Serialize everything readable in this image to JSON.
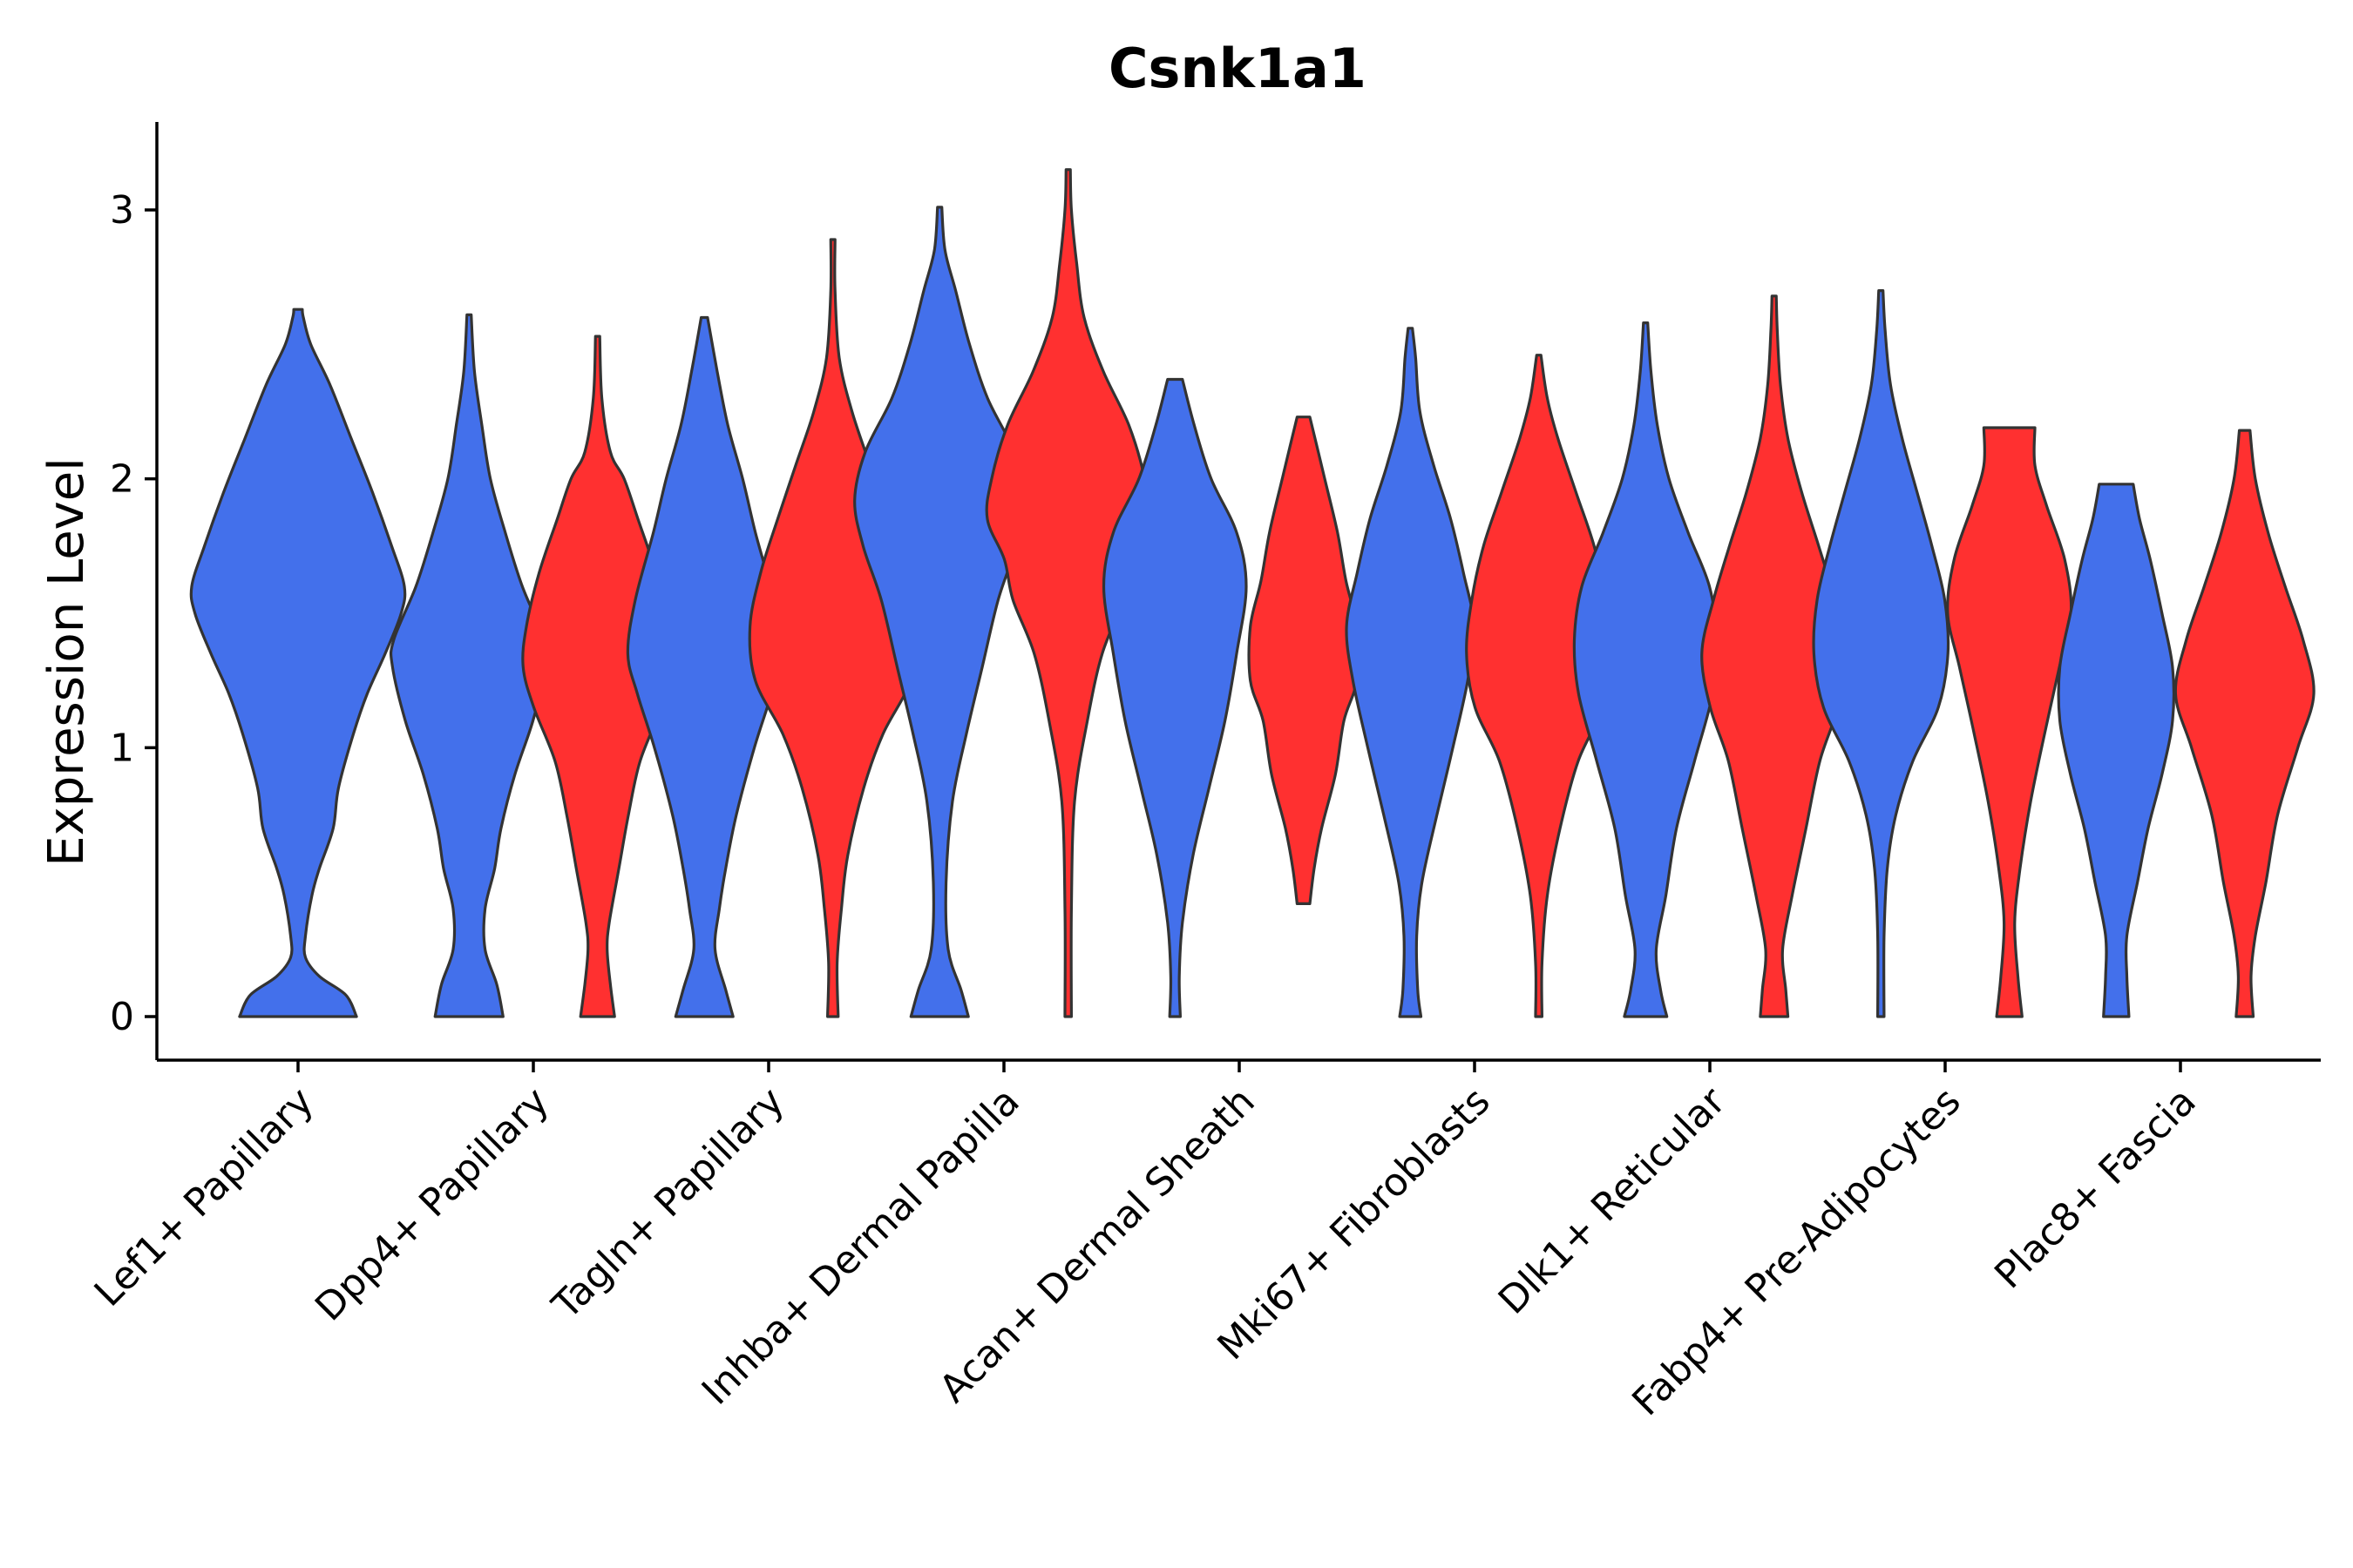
{
  "chart_data": {
    "type": "violin",
    "title": "Csnk1a1",
    "xlabel": "",
    "ylabel": "Expression Level",
    "ylim": [
      -0.16,
      3.32
    ],
    "yticks": [
      0,
      1,
      2,
      3
    ],
    "grid": false,
    "legend": "none",
    "colors": {
      "group1": "#4370EB",
      "group2": "#FF3030",
      "outline": "#333333"
    },
    "categories": [
      "Lef1+ Papillary",
      "Dpp4+ Papillary",
      "Tagln+ Papillary",
      "Inhba+ Dermal Papilla",
      "Acan+ Dermal Sheath",
      "Mki67+ Fibroblasts",
      "Dlk1+ Reticular",
      "Fabp4+ Pre-Adipocytes",
      "Plac8+ Fascia"
    ],
    "violins": [
      {
        "category": 0,
        "group": "group1",
        "offset": 0,
        "profile": [
          [
            0,
            0.55
          ],
          [
            0.08,
            0.45
          ],
          [
            0.15,
            0.2
          ],
          [
            0.22,
            0.07
          ],
          [
            0.3,
            0.07
          ],
          [
            0.45,
            0.13
          ],
          [
            0.55,
            0.2
          ],
          [
            0.7,
            0.33
          ],
          [
            0.85,
            0.38
          ],
          [
            1.05,
            0.52
          ],
          [
            1.2,
            0.65
          ],
          [
            1.35,
            0.82
          ],
          [
            1.5,
            0.97
          ],
          [
            1.6,
            1.0
          ],
          [
            1.75,
            0.88
          ],
          [
            1.95,
            0.7
          ],
          [
            2.15,
            0.5
          ],
          [
            2.35,
            0.3
          ],
          [
            2.5,
            0.12
          ],
          [
            2.6,
            0.05
          ],
          [
            2.63,
            0.04
          ]
        ]
      },
      {
        "category": 1,
        "group": "group1",
        "offset": -0.35,
        "profile": [
          [
            0,
            0.32
          ],
          [
            0.12,
            0.26
          ],
          [
            0.25,
            0.15
          ],
          [
            0.4,
            0.15
          ],
          [
            0.55,
            0.24
          ],
          [
            0.7,
            0.3
          ],
          [
            0.9,
            0.43
          ],
          [
            1.1,
            0.6
          ],
          [
            1.3,
            0.72
          ],
          [
            1.4,
            0.71
          ],
          [
            1.6,
            0.5
          ],
          [
            1.8,
            0.34
          ],
          [
            2.0,
            0.2
          ],
          [
            2.2,
            0.12
          ],
          [
            2.4,
            0.05
          ],
          [
            2.61,
            0.02
          ]
        ]
      },
      {
        "category": 1,
        "group": "group2",
        "offset": 0.35,
        "profile": [
          [
            0,
            0.16
          ],
          [
            0.12,
            0.12
          ],
          [
            0.25,
            0.09
          ],
          [
            0.35,
            0.11
          ],
          [
            0.55,
            0.2
          ],
          [
            0.75,
            0.29
          ],
          [
            0.95,
            0.4
          ],
          [
            1.15,
            0.6
          ],
          [
            1.3,
            0.7
          ],
          [
            1.45,
            0.67
          ],
          [
            1.65,
            0.55
          ],
          [
            1.85,
            0.38
          ],
          [
            2.0,
            0.25
          ],
          [
            2.1,
            0.12
          ],
          [
            2.3,
            0.04
          ],
          [
            2.53,
            0.02
          ]
        ]
      },
      {
        "category": 2,
        "group": "group1",
        "offset": -0.35,
        "profile": [
          [
            0,
            0.27
          ],
          [
            0.1,
            0.2
          ],
          [
            0.25,
            0.1
          ],
          [
            0.4,
            0.14
          ],
          [
            0.55,
            0.2
          ],
          [
            0.75,
            0.3
          ],
          [
            1.0,
            0.47
          ],
          [
            1.2,
            0.63
          ],
          [
            1.35,
            0.72
          ],
          [
            1.55,
            0.65
          ],
          [
            1.8,
            0.48
          ],
          [
            2.0,
            0.36
          ],
          [
            2.2,
            0.22
          ],
          [
            2.4,
            0.12
          ],
          [
            2.6,
            0.03
          ]
        ]
      },
      {
        "category": 2,
        "group": "group2",
        "offset": 0.35,
        "profile": [
          [
            0,
            0.05
          ],
          [
            0.2,
            0.04
          ],
          [
            0.4,
            0.08
          ],
          [
            0.6,
            0.14
          ],
          [
            0.85,
            0.29
          ],
          [
            1.05,
            0.47
          ],
          [
            1.25,
            0.73
          ],
          [
            1.45,
            0.78
          ],
          [
            1.65,
            0.68
          ],
          [
            1.85,
            0.52
          ],
          [
            2.05,
            0.35
          ],
          [
            2.25,
            0.18
          ],
          [
            2.45,
            0.06
          ],
          [
            2.7,
            0.02
          ],
          [
            2.89,
            0.02
          ]
        ]
      },
      {
        "category": 3,
        "group": "group1",
        "offset": -0.35,
        "profile": [
          [
            0,
            0.27
          ],
          [
            0.1,
            0.2
          ],
          [
            0.25,
            0.08
          ],
          [
            0.5,
            0.06
          ],
          [
            0.8,
            0.12
          ],
          [
            1.05,
            0.25
          ],
          [
            1.3,
            0.4
          ],
          [
            1.55,
            0.55
          ],
          [
            1.75,
            0.72
          ],
          [
            1.92,
            0.8
          ],
          [
            2.1,
            0.7
          ],
          [
            2.3,
            0.45
          ],
          [
            2.5,
            0.28
          ],
          [
            2.7,
            0.15
          ],
          [
            2.85,
            0.05
          ],
          [
            3.01,
            0.02
          ]
        ]
      },
      {
        "category": 3,
        "group": "group2",
        "offset": 0.35,
        "profile": [
          [
            0,
            0.03
          ],
          [
            0.4,
            0.03
          ],
          [
            0.8,
            0.06
          ],
          [
            1.1,
            0.18
          ],
          [
            1.35,
            0.32
          ],
          [
            1.55,
            0.52
          ],
          [
            1.7,
            0.6
          ],
          [
            1.85,
            0.76
          ],
          [
            2.0,
            0.72
          ],
          [
            2.2,
            0.57
          ],
          [
            2.4,
            0.33
          ],
          [
            2.6,
            0.15
          ],
          [
            2.8,
            0.08
          ],
          [
            3.0,
            0.03
          ],
          [
            3.15,
            0.02
          ]
        ]
      },
      {
        "category": 4,
        "group": "group1",
        "offset": -0.35,
        "profile": [
          [
            0,
            0.05
          ],
          [
            0.15,
            0.04
          ],
          [
            0.35,
            0.07
          ],
          [
            0.6,
            0.17
          ],
          [
            0.85,
            0.32
          ],
          [
            1.1,
            0.47
          ],
          [
            1.35,
            0.58
          ],
          [
            1.6,
            0.67
          ],
          [
            1.8,
            0.58
          ],
          [
            2.0,
            0.34
          ],
          [
            2.2,
            0.18
          ],
          [
            2.37,
            0.07
          ]
        ]
      },
      {
        "category": 4,
        "group": "group2",
        "offset": 0.35,
        "profile": [
          [
            0.42,
            0.06
          ],
          [
            0.55,
            0.1
          ],
          [
            0.7,
            0.17
          ],
          [
            0.9,
            0.3
          ],
          [
            1.1,
            0.38
          ],
          [
            1.25,
            0.5
          ],
          [
            1.45,
            0.5
          ],
          [
            1.62,
            0.4
          ],
          [
            1.8,
            0.32
          ],
          [
            2.0,
            0.2
          ],
          [
            2.23,
            0.06
          ]
        ]
      },
      {
        "category": 5,
        "group": "group1",
        "offset": -0.35,
        "profile": [
          [
            0,
            0.1
          ],
          [
            0.1,
            0.07
          ],
          [
            0.3,
            0.06
          ],
          [
            0.5,
            0.11
          ],
          [
            0.75,
            0.25
          ],
          [
            1.0,
            0.4
          ],
          [
            1.25,
            0.54
          ],
          [
            1.45,
            0.6
          ],
          [
            1.65,
            0.5
          ],
          [
            1.85,
            0.38
          ],
          [
            2.05,
            0.22
          ],
          [
            2.25,
            0.09
          ],
          [
            2.45,
            0.05
          ],
          [
            2.56,
            0.02
          ]
        ]
      },
      {
        "category": 5,
        "group": "group2",
        "offset": 0.35,
        "profile": [
          [
            0,
            0.03
          ],
          [
            0.2,
            0.03
          ],
          [
            0.45,
            0.08
          ],
          [
            0.7,
            0.2
          ],
          [
            0.95,
            0.37
          ],
          [
            1.15,
            0.6
          ],
          [
            1.35,
            0.68
          ],
          [
            1.55,
            0.63
          ],
          [
            1.75,
            0.52
          ],
          [
            1.95,
            0.35
          ],
          [
            2.15,
            0.18
          ],
          [
            2.3,
            0.08
          ],
          [
            2.46,
            0.02
          ]
        ]
      },
      {
        "category": 6,
        "group": "group1",
        "offset": -0.35,
        "profile": [
          [
            0,
            0.2
          ],
          [
            0.1,
            0.14
          ],
          [
            0.25,
            0.1
          ],
          [
            0.45,
            0.19
          ],
          [
            0.7,
            0.29
          ],
          [
            0.95,
            0.46
          ],
          [
            1.2,
            0.63
          ],
          [
            1.4,
            0.67
          ],
          [
            1.6,
            0.6
          ],
          [
            1.8,
            0.4
          ],
          [
            2.0,
            0.22
          ],
          [
            2.2,
            0.11
          ],
          [
            2.4,
            0.05
          ],
          [
            2.58,
            0.02
          ]
        ]
      },
      {
        "category": 6,
        "group": "group2",
        "offset": 0.35,
        "profile": [
          [
            0,
            0.13
          ],
          [
            0.1,
            0.11
          ],
          [
            0.25,
            0.08
          ],
          [
            0.45,
            0.17
          ],
          [
            0.7,
            0.3
          ],
          [
            0.95,
            0.43
          ],
          [
            1.15,
            0.6
          ],
          [
            1.35,
            0.68
          ],
          [
            1.55,
            0.57
          ],
          [
            1.75,
            0.42
          ],
          [
            1.95,
            0.26
          ],
          [
            2.15,
            0.13
          ],
          [
            2.35,
            0.06
          ],
          [
            2.55,
            0.03
          ],
          [
            2.68,
            0.02
          ]
        ]
      },
      {
        "category": 7,
        "group": "group1",
        "offset": -0.35,
        "profile": [
          [
            0,
            0.03
          ],
          [
            0.3,
            0.03
          ],
          [
            0.55,
            0.06
          ],
          [
            0.75,
            0.14
          ],
          [
            0.95,
            0.3
          ],
          [
            1.15,
            0.54
          ],
          [
            1.35,
            0.63
          ],
          [
            1.55,
            0.6
          ],
          [
            1.75,
            0.48
          ],
          [
            1.95,
            0.34
          ],
          [
            2.15,
            0.2
          ],
          [
            2.35,
            0.09
          ],
          [
            2.55,
            0.04
          ],
          [
            2.7,
            0.02
          ]
        ]
      },
      {
        "category": 7,
        "group": "group2",
        "offset": 0.35,
        "profile": [
          [
            0,
            0.12
          ],
          [
            0.15,
            0.08
          ],
          [
            0.35,
            0.05
          ],
          [
            0.55,
            0.1
          ],
          [
            0.8,
            0.2
          ],
          [
            1.05,
            0.33
          ],
          [
            1.3,
            0.47
          ],
          [
            1.5,
            0.58
          ],
          [
            1.7,
            0.52
          ],
          [
            1.9,
            0.35
          ],
          [
            2.05,
            0.24
          ],
          [
            2.19,
            0.24
          ]
        ]
      },
      {
        "category": 8,
        "group": "group1",
        "offset": -0.35,
        "profile": [
          [
            0,
            0.12
          ],
          [
            0.15,
            0.1
          ],
          [
            0.3,
            0.1
          ],
          [
            0.5,
            0.2
          ],
          [
            0.7,
            0.3
          ],
          [
            0.9,
            0.43
          ],
          [
            1.1,
            0.53
          ],
          [
            1.3,
            0.53
          ],
          [
            1.5,
            0.43
          ],
          [
            1.7,
            0.32
          ],
          [
            1.85,
            0.22
          ],
          [
            1.98,
            0.16
          ]
        ]
      },
      {
        "category": 8,
        "group": "group2",
        "offset": 0.35,
        "profile": [
          [
            0,
            0.08
          ],
          [
            0.15,
            0.06
          ],
          [
            0.3,
            0.1
          ],
          [
            0.5,
            0.2
          ],
          [
            0.75,
            0.31
          ],
          [
            1.0,
            0.5
          ],
          [
            1.2,
            0.65
          ],
          [
            1.4,
            0.55
          ],
          [
            1.6,
            0.38
          ],
          [
            1.8,
            0.22
          ],
          [
            2.0,
            0.1
          ],
          [
            2.18,
            0.05
          ]
        ]
      }
    ]
  }
}
